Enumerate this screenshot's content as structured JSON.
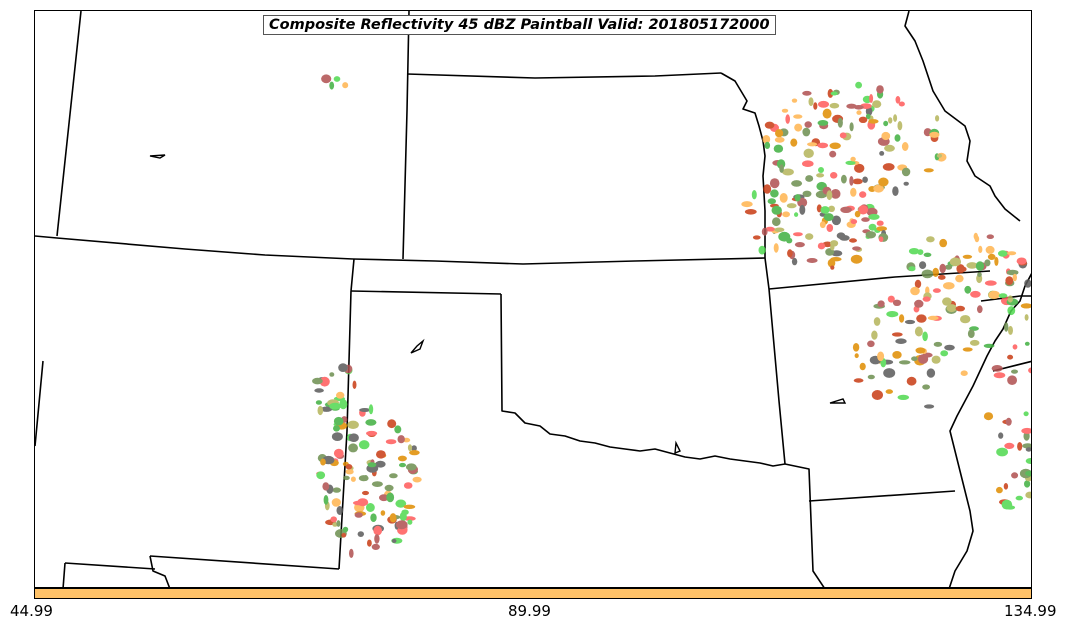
{
  "title": "Composite Reflectivity 45 dBZ Paintball Valid: 201805172000",
  "colorbar": {
    "ticks": [
      "44.99",
      "89.99",
      "134.99"
    ],
    "color": "#ffc268"
  },
  "paintball_colors": [
    "#ff5a5a",
    "#4fd94f",
    "#ffb44f",
    "#b5b55a",
    "#6d8f4f",
    "#b05050",
    "#e08c00",
    "#5a5a5a",
    "#c83c14",
    "#40b040"
  ],
  "regions": [
    "state-borders",
    "rio-grande",
    "mississippi-river",
    "lakes"
  ]
}
